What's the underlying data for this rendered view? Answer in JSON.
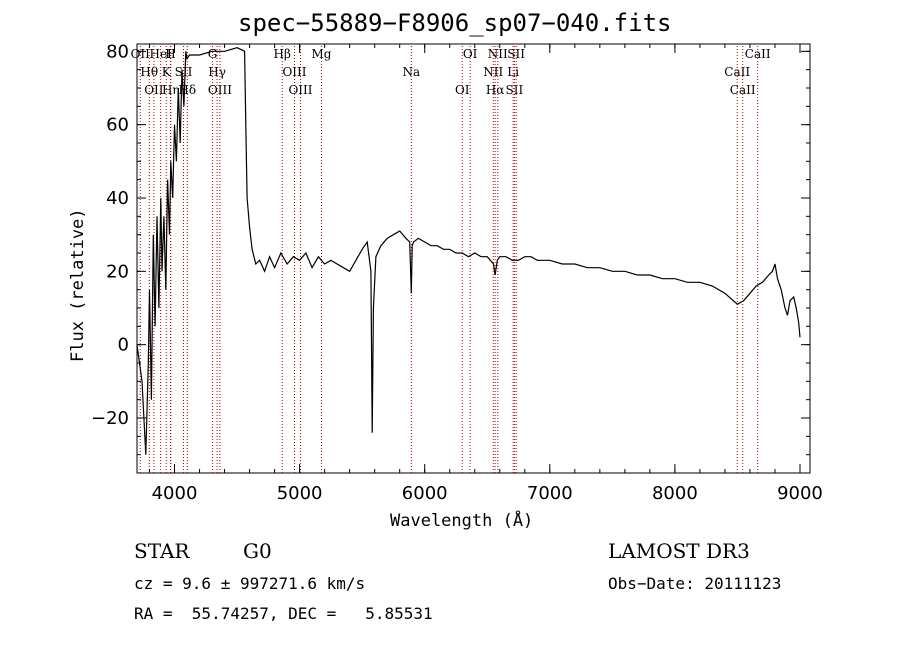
{
  "chart_data": {
    "type": "line",
    "title": "spec−55889−F8906_sp07−040.fits",
    "xlabel": "Wavelength (Å)",
    "ylabel": "Flux (relative)",
    "xlim": [
      3700,
      9080
    ],
    "ylim": [
      -35,
      82
    ],
    "xticks": [
      4000,
      5000,
      6000,
      7000,
      8000,
      9000
    ],
    "yticks": [
      -20,
      0,
      20,
      40,
      60,
      80
    ],
    "grid": false,
    "series": [
      {
        "x": [
          3700,
          3740,
          3770,
          3790,
          3800,
          3815,
          3830,
          3845,
          3860,
          3875,
          3890,
          3900,
          3915,
          3930,
          3945,
          3960,
          3970,
          3985,
          4000,
          4015,
          4030,
          4045,
          4060,
          4075,
          4090,
          4100,
          4120,
          4160,
          4200,
          4300,
          4400,
          4500,
          4560,
          4570,
          4580,
          4600,
          4620,
          4650,
          4680,
          4720,
          4760,
          4800,
          4850,
          4900,
          4950,
          5000,
          5050,
          5100,
          5150,
          5200,
          5250,
          5300,
          5350,
          5400,
          5450,
          5500,
          5540,
          5570,
          5575,
          5580,
          5590,
          5610,
          5650,
          5700,
          5750,
          5800,
          5850,
          5880,
          5893,
          5900,
          5910,
          5950,
          6000,
          6050,
          6100,
          6150,
          6200,
          6250,
          6300,
          6350,
          6400,
          6450,
          6500,
          6550,
          6563,
          6580,
          6600,
          6650,
          6700,
          6750,
          6800,
          6850,
          6900,
          6950,
          7000,
          7100,
          7200,
          7300,
          7400,
          7500,
          7600,
          7700,
          7800,
          7900,
          8000,
          8100,
          8200,
          8300,
          8400,
          8500,
          8550,
          8600,
          8650,
          8700,
          8750,
          8780,
          8800,
          8820,
          8850,
          8880,
          8900,
          8920,
          8950,
          8970,
          8990,
          9000
        ],
        "values": [
          0,
          -10,
          -30,
          -5,
          15,
          -15,
          30,
          5,
          35,
          10,
          40,
          20,
          35,
          15,
          45,
          30,
          50,
          40,
          60,
          50,
          70,
          55,
          75,
          65,
          80,
          78,
          79,
          79,
          79,
          80,
          80,
          81,
          80,
          60,
          40,
          32,
          26,
          22,
          23,
          20,
          24,
          21,
          25,
          22,
          24,
          23,
          25,
          21,
          24,
          22,
          23,
          22,
          21,
          20,
          23,
          26,
          28,
          20,
          0,
          -24,
          10,
          24,
          27,
          29,
          30,
          31,
          29,
          28,
          14,
          27,
          28,
          29,
          28,
          27,
          27,
          26,
          26,
          25,
          25,
          24,
          25,
          24,
          24,
          22,
          19,
          23,
          24,
          24,
          23,
          23,
          24,
          24,
          23,
          23,
          23,
          22,
          22,
          21,
          21,
          20,
          20,
          19,
          19,
          18,
          18,
          17,
          17,
          16,
          14,
          11,
          12,
          14,
          16,
          17,
          19,
          20,
          22,
          18,
          15,
          10,
          8,
          12,
          13,
          10,
          6,
          2
        ]
      }
    ],
    "lines": [
      {
        "wave": 3726,
        "label": "OII"
      },
      {
        "wave": 3798,
        "label": "Hθ"
      },
      {
        "wave": 3835,
        "label": "OII"
      },
      {
        "wave": 3889,
        "label": "HeI"
      },
      {
        "wave": 3934,
        "label": "K"
      },
      {
        "wave": 3970,
        "label": "Hη"
      },
      {
        "wave": 3968,
        "label": "H"
      },
      {
        "wave": 4072,
        "label": "SII"
      },
      {
        "wave": 4102,
        "label": "Hδ"
      },
      {
        "wave": 4304,
        "label": "G"
      },
      {
        "wave": 4340,
        "label": "Hγ"
      },
      {
        "wave": 4363,
        "label": "OIII"
      },
      {
        "wave": 4861,
        "label": "Hβ"
      },
      {
        "wave": 4959,
        "label": "OIII"
      },
      {
        "wave": 5007,
        "label": "OIII"
      },
      {
        "wave": 5175,
        "label": "Mg"
      },
      {
        "wave": 5893,
        "label": "Na"
      },
      {
        "wave": 6300,
        "label": "OI"
      },
      {
        "wave": 6363,
        "label": "OI"
      },
      {
        "wave": 6548,
        "label": "NII"
      },
      {
        "wave": 6563,
        "label": "Hα"
      },
      {
        "wave": 6584,
        "label": "NII"
      },
      {
        "wave": 6707,
        "label": "Li"
      },
      {
        "wave": 6717,
        "label": "SII"
      },
      {
        "wave": 6731,
        "label": "SII"
      },
      {
        "wave": 8498,
        "label": "CaII"
      },
      {
        "wave": 8542,
        "label": "CaII"
      },
      {
        "wave": 8662,
        "label": "CaII"
      }
    ]
  },
  "info": {
    "class": "STAR",
    "subclass": "G0",
    "survey": "LAMOST DR3",
    "cz": "cz = 9.6 ± 997271.6 km/s",
    "obsdate": "Obs−Date: 20111123",
    "radec": "RA =  55.74257, DEC =   5.85531"
  },
  "colors": {
    "spectrum": "#000000",
    "line_marker": "#b30000"
  }
}
